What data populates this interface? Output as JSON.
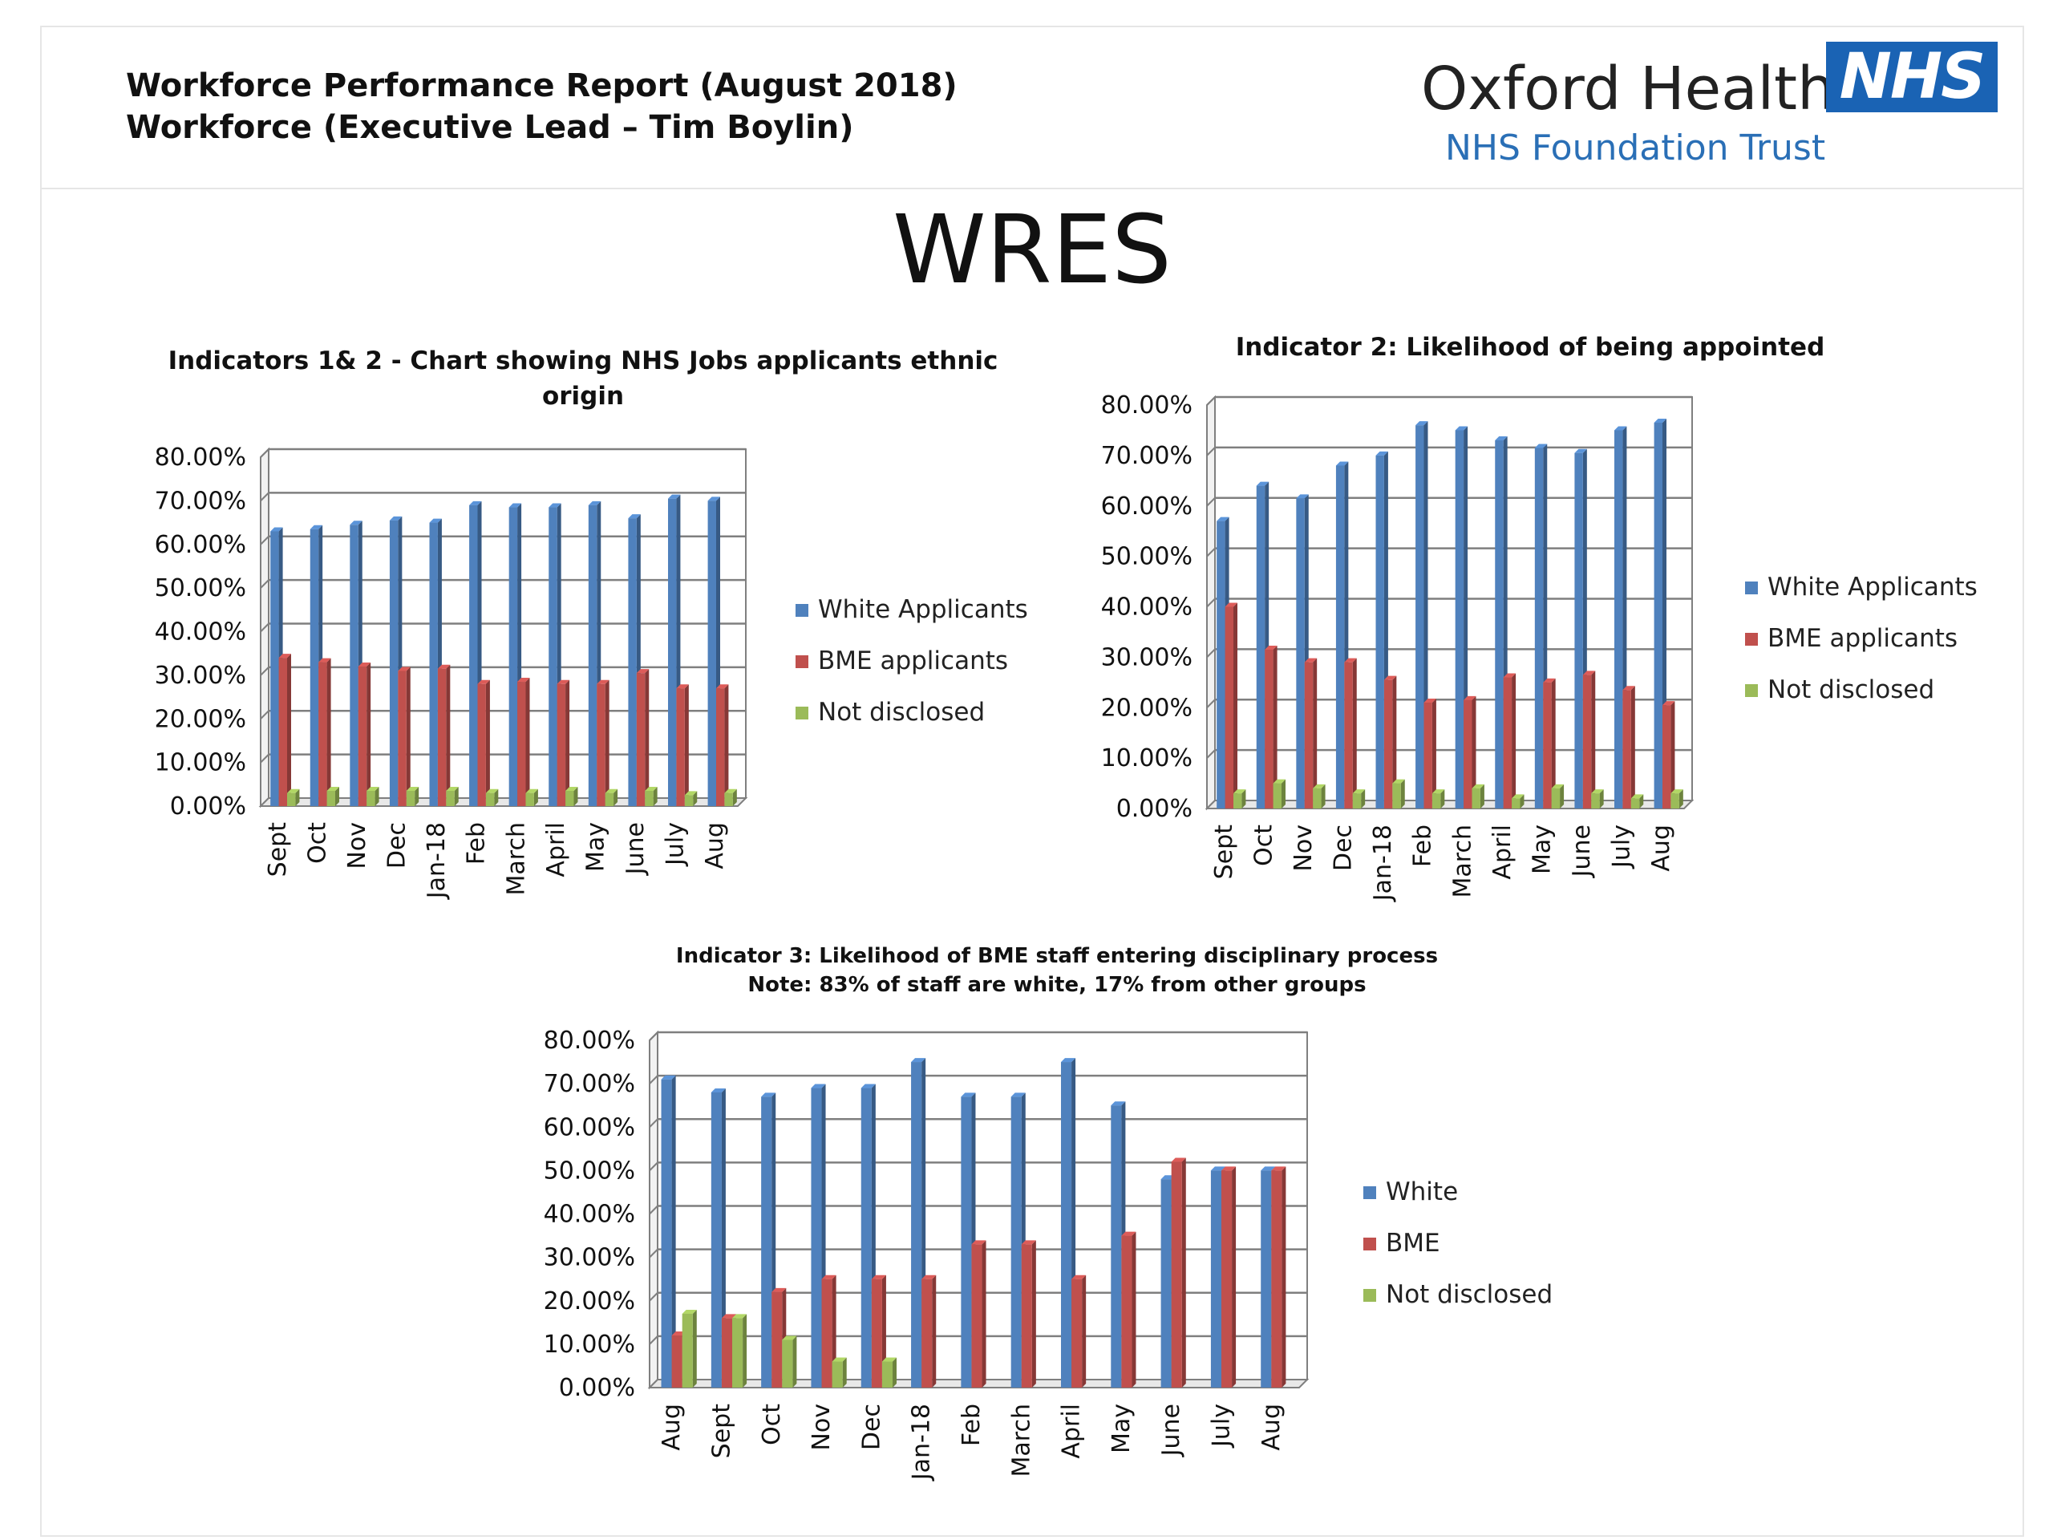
{
  "header": {
    "title_line1": "Workforce Performance Report (August 2018)",
    "title_line2": "Workforce (Executive Lead – Tim Boylin)",
    "org_name": "Oxford Health",
    "logo_text": "NHS",
    "org_sub": "NHS Foundation Trust"
  },
  "page_title": "WRES",
  "colors": {
    "white": "#4f81bd",
    "bme": "#c0504d",
    "not_disclosed": "#9bbb59"
  },
  "chart_data": [
    {
      "type": "bar",
      "title": [
        "Indicators 1& 2 - Chart showing NHS Jobs applicants ethnic",
        "origin"
      ],
      "xlabel": "",
      "ylabel": "",
      "ylim": [
        0,
        80
      ],
      "y_tick_labels": [
        "0.00%",
        "10.00%",
        "20.00%",
        "30.00%",
        "40.00%",
        "50.00%",
        "60.00%",
        "70.00%",
        "80.00%"
      ],
      "grid": true,
      "legend": "right",
      "categories": [
        "Sept",
        "Oct",
        "Nov",
        "Dec",
        "Jan-18",
        "Feb",
        "March",
        "April",
        "May",
        "June",
        "July",
        "Aug"
      ],
      "series": [
        {
          "name": "White Applicants",
          "values": [
            63,
            63.5,
            64.5,
            65.5,
            65,
            69,
            68.5,
            68.5,
            69,
            66,
            70.5,
            70
          ]
        },
        {
          "name": "BME applicants",
          "values": [
            34,
            33,
            32,
            31,
            31.5,
            28,
            28.5,
            28,
            28,
            30.5,
            27,
            27
          ]
        },
        {
          "name": "Not disclosed",
          "values": [
            3,
            3.5,
            3.5,
            3.5,
            3.5,
            3,
            3,
            3.5,
            3,
            3.5,
            2.5,
            3
          ]
        }
      ]
    },
    {
      "type": "bar",
      "title": [
        "Indicator 2: Likelihood of being appointed"
      ],
      "xlabel": "",
      "ylabel": "",
      "ylim": [
        0,
        80
      ],
      "y_tick_labels": [
        "0.00%",
        "10.00%",
        "20.00%",
        "30.00%",
        "40.00%",
        "50.00%",
        "60.00%",
        "70.00%",
        "80.00%"
      ],
      "grid": true,
      "legend": "right",
      "categories": [
        "Sept",
        "Oct",
        "Nov",
        "Dec",
        "Jan-18",
        "Feb",
        "March",
        "April",
        "May",
        "June",
        "July",
        "Aug"
      ],
      "series": [
        {
          "name": "White Applicants",
          "values": [
            57,
            64,
            61.5,
            68,
            70,
            76,
            75,
            73,
            71.5,
            70.5,
            75,
            76.5
          ]
        },
        {
          "name": "BME applicants",
          "values": [
            40,
            31.5,
            29,
            29,
            25.5,
            21,
            21.5,
            26,
            25,
            26.5,
            23.5,
            20.5
          ]
        },
        {
          "name": "Not disclosed",
          "values": [
            3,
            5,
            4,
            3,
            5,
            3,
            4,
            2,
            4,
            3,
            2,
            3
          ]
        }
      ]
    },
    {
      "type": "bar",
      "title": [
        "Indicator 3: Likelihood of BME staff entering disciplinary process",
        "Note: 83% of staff are white, 17% from other groups"
      ],
      "xlabel": "",
      "ylabel": "",
      "ylim": [
        0,
        80
      ],
      "y_tick_labels": [
        "0.00%",
        "10.00%",
        "20.00%",
        "30.00%",
        "40.00%",
        "50.00%",
        "60.00%",
        "70.00%",
        "80.00%"
      ],
      "grid": true,
      "legend": "right",
      "categories": [
        "Aug",
        "Sept",
        "Oct",
        "Nov",
        "Dec",
        "Jan-18",
        "Feb",
        "March",
        "April",
        "May",
        "June",
        "July",
        "Aug"
      ],
      "series": [
        {
          "name": "White",
          "values": [
            71,
            68,
            67,
            69,
            69,
            75,
            67,
            67,
            75,
            65,
            48,
            50,
            50
          ]
        },
        {
          "name": "BME",
          "values": [
            12,
            16,
            22,
            25,
            25,
            25,
            33,
            33,
            25,
            35,
            52,
            50,
            50
          ]
        },
        {
          "name": "Not disclosed",
          "values": [
            17,
            16,
            11,
            6,
            6,
            0,
            0,
            0,
            0,
            0,
            0,
            0,
            0
          ]
        }
      ]
    }
  ]
}
